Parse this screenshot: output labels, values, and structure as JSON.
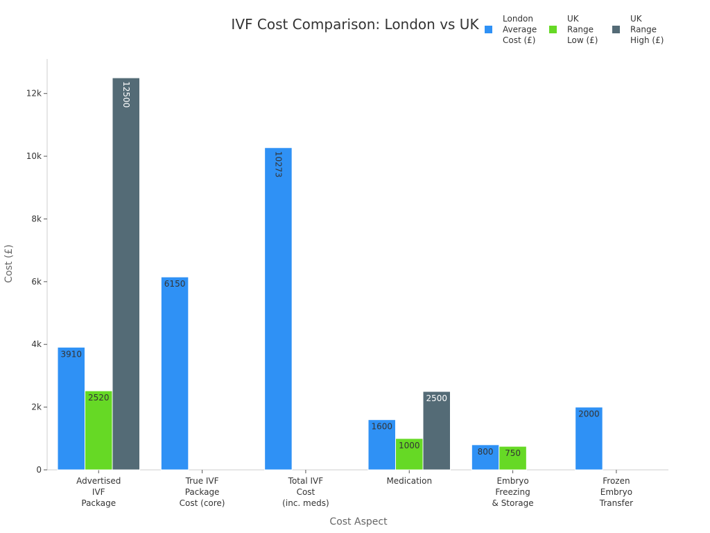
{
  "chart_data": {
    "type": "bar",
    "title": "IVF Cost Comparison: London vs UK",
    "xlabel": "Cost Aspect",
    "ylabel": "Cost (£)",
    "ylim": [
      0,
      13100
    ],
    "yticks": [
      0,
      2000,
      4000,
      6000,
      8000,
      10000,
      12000
    ],
    "ytick_labels": [
      "0",
      "2k",
      "4k",
      "6k",
      "8k",
      "10k",
      "12k"
    ],
    "categories": [
      [
        "Advertised",
        "IVF",
        "Package"
      ],
      [
        "True IVF",
        "Package",
        "Cost (core)"
      ],
      [
        "Total IVF",
        "Cost",
        "(inc. meds)"
      ],
      [
        "Medication"
      ],
      [
        "Embryo",
        "Freezing",
        "& Storage"
      ],
      [
        "Frozen",
        "Embryo",
        "Transfer"
      ]
    ],
    "legend_position": "top-right",
    "series": [
      {
        "name": [
          "London",
          "Average",
          "Cost (£)"
        ],
        "color": "#2f91f5",
        "label_color": "#333333",
        "values": [
          3910,
          6150,
          10273,
          1600,
          800,
          2000
        ]
      },
      {
        "name": [
          "UK",
          "Range",
          "Low (£)"
        ],
        "color": "#66d925",
        "label_color": "#333333",
        "values": [
          2520,
          null,
          null,
          1000,
          750,
          null
        ]
      },
      {
        "name": [
          "UK",
          "Range",
          "High (£)"
        ],
        "color": "#546b76",
        "label_color": "#ffffff",
        "values": [
          12500,
          null,
          null,
          2500,
          null,
          null
        ]
      }
    ]
  }
}
